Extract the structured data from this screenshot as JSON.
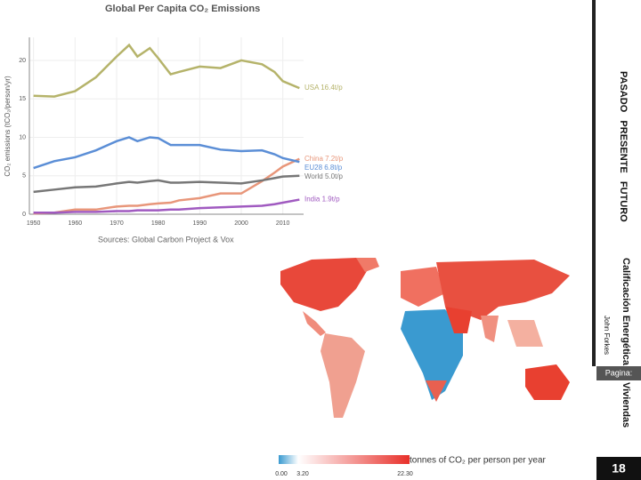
{
  "chart_data": {
    "type": "line",
    "title": "Global Per Capita CO₂ Emissions",
    "ylabel": "CO₂ emissions (tCO₂/person/yr)",
    "source": "Sources: Global Carbon Project & Vox",
    "x": [
      1950,
      1955,
      1960,
      1965,
      1970,
      1973,
      1975,
      1978,
      1980,
      1983,
      1985,
      1990,
      1995,
      2000,
      2005,
      2008,
      2010,
      2014
    ],
    "series": [
      {
        "name": "USA 16.4t/p",
        "color": "#b5b36a",
        "values": [
          15.4,
          15.3,
          16.0,
          17.8,
          20.5,
          22.0,
          20.5,
          21.6,
          20.3,
          18.2,
          18.5,
          19.2,
          19.0,
          20.0,
          19.5,
          18.5,
          17.3,
          16.4
        ]
      },
      {
        "name": "China 7.2t/p",
        "color": "#e8967a",
        "values": [
          0.1,
          0.2,
          0.6,
          0.6,
          1.0,
          1.1,
          1.1,
          1.3,
          1.4,
          1.5,
          1.8,
          2.1,
          2.7,
          2.7,
          4.3,
          5.4,
          6.2,
          7.2
        ]
      },
      {
        "name": "EU28 6.8t/p",
        "color": "#5b8ed6",
        "values": [
          6.0,
          6.9,
          7.4,
          8.3,
          9.5,
          10.0,
          9.5,
          10.0,
          9.9,
          9.0,
          9.0,
          9.0,
          8.4,
          8.2,
          8.3,
          7.8,
          7.3,
          6.8
        ]
      },
      {
        "name": "World 5.0t/p",
        "color": "#777777",
        "values": [
          2.9,
          3.2,
          3.5,
          3.6,
          4.0,
          4.2,
          4.1,
          4.3,
          4.4,
          4.1,
          4.1,
          4.2,
          4.1,
          4.0,
          4.4,
          4.7,
          4.9,
          5.0
        ]
      },
      {
        "name": "India 1.9t/p",
        "color": "#a05ac0",
        "values": [
          0.2,
          0.2,
          0.3,
          0.3,
          0.4,
          0.4,
          0.5,
          0.5,
          0.5,
          0.6,
          0.6,
          0.8,
          0.9,
          1.0,
          1.1,
          1.3,
          1.5,
          1.9
        ]
      }
    ],
    "xlim": [
      1949,
      2015
    ],
    "xticks": [
      1950,
      1960,
      1970,
      1980,
      1990,
      2000,
      2010
    ],
    "ylim": [
      0,
      23
    ],
    "yticks": [
      0,
      5,
      10,
      15,
      20
    ],
    "grid": true
  },
  "map_legend": {
    "ticks": [
      "0.00",
      "3.20",
      "22.30"
    ],
    "label": "tonnes of CO₂ per person per year"
  },
  "sidebar": {
    "sections": "PASADO   PRESENTE   FUTURO",
    "title": "Calificación Energética de Viviendas",
    "author": "John Forkes",
    "page_label": "Pagina:",
    "page_number": "18"
  }
}
